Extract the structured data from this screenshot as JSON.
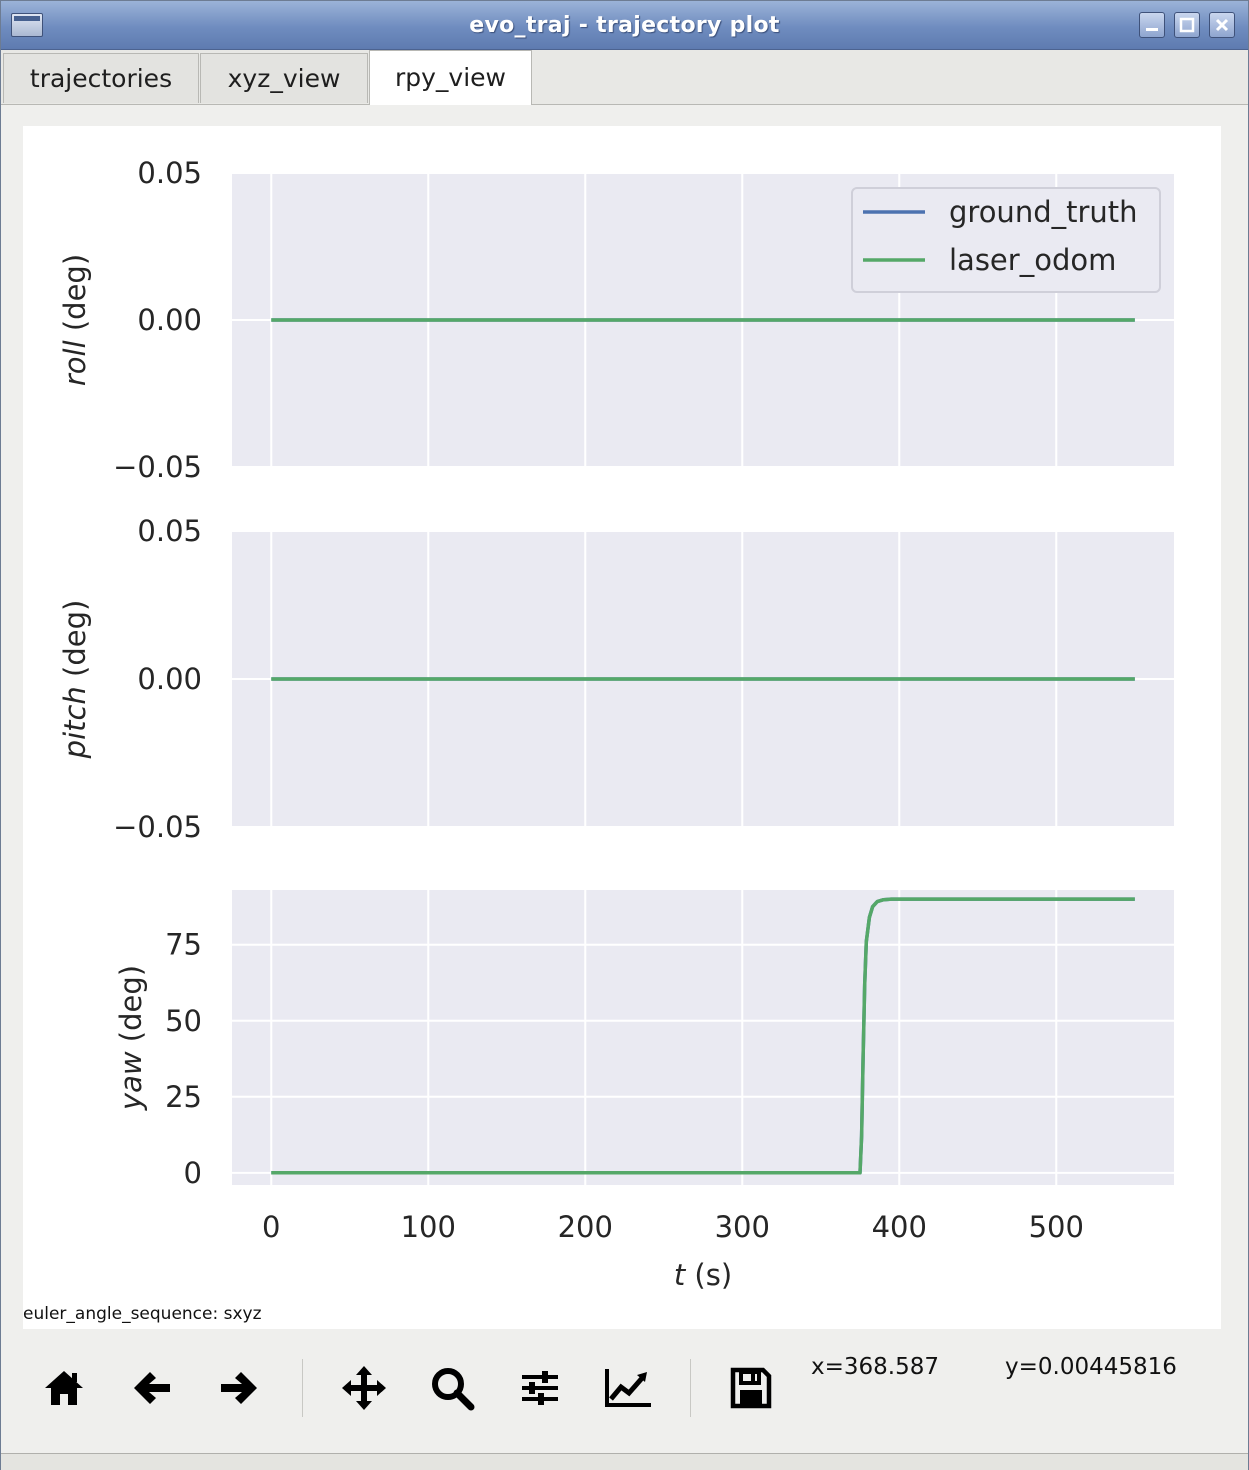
{
  "window": {
    "title": "evo_traj - trajectory plot",
    "controls": [
      "minimize-icon",
      "maximize-icon",
      "close-icon"
    ]
  },
  "tabs": [
    {
      "label": "trajectories",
      "active": false
    },
    {
      "label": "xyz_view",
      "active": false
    },
    {
      "label": "rpy_view",
      "active": true
    }
  ],
  "footer_note": "euler_angle_sequence: sxyz",
  "toolbar": {
    "tools": [
      "home-icon",
      "back-icon",
      "forward-icon",
      "pan-icon",
      "zoom-icon",
      "configure-subplots-icon",
      "edit-axes-icon",
      "save-icon"
    ],
    "x_readout": "x=368.587",
    "y_readout": "y=0.00445816"
  },
  "colors": {
    "plot_bg": "#eaeaf2",
    "grid": "#ffffff",
    "ground_truth": "#4c72b0",
    "laser_odom": "#55a868"
  },
  "chart_data": [
    {
      "type": "line",
      "ylabel_italic": "roll",
      "ylabel_unit": " (deg)",
      "xlim": [
        -25,
        575
      ],
      "ylim": [
        -0.05,
        0.05
      ],
      "yticks": [
        0.05,
        0,
        -0.05
      ],
      "ytick_labels": [
        "0.05",
        "0.00",
        "−0.05"
      ],
      "xticks": [
        0,
        100,
        200,
        300,
        400,
        500
      ],
      "grid": true,
      "legend": {
        "placement": "top-right",
        "entries": [
          "ground_truth",
          "laser_odom"
        ]
      },
      "series": [
        {
          "name": "ground_truth",
          "x": [
            0,
            550
          ],
          "y": [
            0,
            0
          ]
        },
        {
          "name": "laser_odom",
          "x": [
            0,
            550
          ],
          "y": [
            0,
            0
          ]
        }
      ]
    },
    {
      "type": "line",
      "ylabel_italic": "pitch",
      "ylabel_unit": " (deg)",
      "xlim": [
        -25,
        575
      ],
      "ylim": [
        -0.05,
        0.05
      ],
      "yticks": [
        0.05,
        0,
        -0.05
      ],
      "ytick_labels": [
        "0.05",
        "0.00",
        "−0.05"
      ],
      "xticks": [
        0,
        100,
        200,
        300,
        400,
        500
      ],
      "grid": true,
      "series": [
        {
          "name": "ground_truth",
          "x": [
            0,
            550
          ],
          "y": [
            0,
            0
          ]
        },
        {
          "name": "laser_odom",
          "x": [
            0,
            550
          ],
          "y": [
            0,
            0
          ]
        }
      ]
    },
    {
      "type": "line",
      "ylabel_italic": "yaw",
      "ylabel_unit": " (deg)",
      "xlabel_italic": "t",
      "xlabel_unit": " (s)",
      "xlim": [
        -25,
        575
      ],
      "ylim": [
        -4,
        93
      ],
      "yticks": [
        0,
        25,
        50,
        75
      ],
      "ytick_labels": [
        "0",
        "25",
        "50",
        "75"
      ],
      "xticks": [
        0,
        100,
        200,
        300,
        400,
        500
      ],
      "xtick_labels": [
        "0",
        "100",
        "200",
        "300",
        "400",
        "500"
      ],
      "grid": true,
      "series": [
        {
          "name": "ground_truth",
          "x": [
            0,
            375,
            376,
            377,
            378,
            379,
            381,
            383,
            386,
            390,
            395,
            550
          ],
          "y": [
            0,
            0,
            12,
            38,
            62,
            76,
            84,
            87.5,
            89.2,
            89.8,
            90,
            90
          ]
        },
        {
          "name": "laser_odom",
          "x": [
            0,
            375,
            376,
            377,
            378,
            379,
            381,
            383,
            386,
            390,
            395,
            550
          ],
          "y": [
            0,
            0,
            12,
            38,
            62,
            76,
            84,
            87.5,
            89.2,
            89.8,
            90,
            90
          ]
        }
      ]
    }
  ]
}
